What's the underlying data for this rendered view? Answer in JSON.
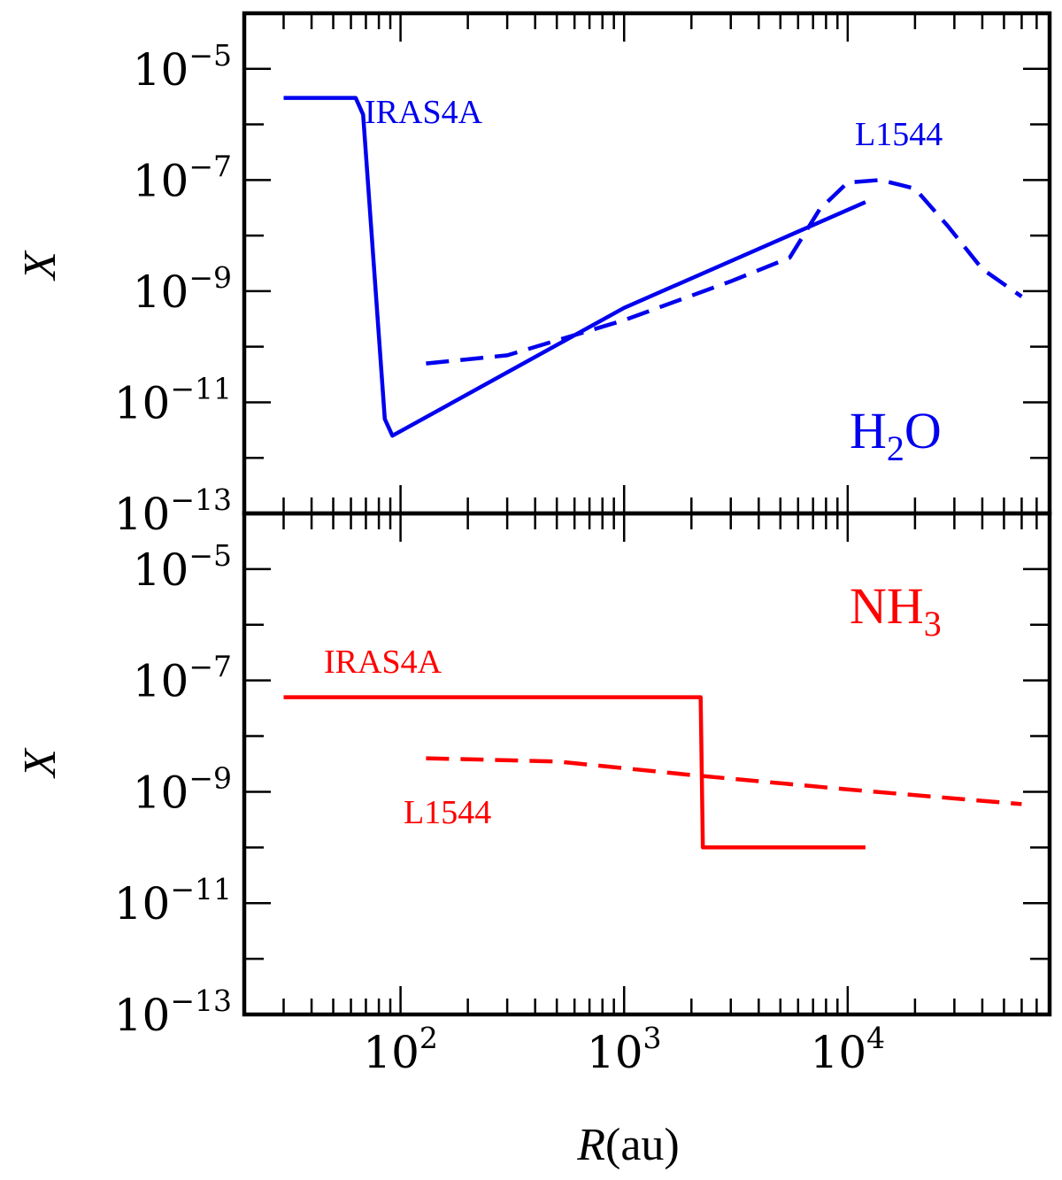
{
  "chart_data": [
    {
      "type": "line",
      "panel": "top",
      "species_label": {
        "main": "H",
        "sub": "2",
        "tail": "O"
      },
      "ylabel": "X",
      "xscale": "log",
      "yscale": "log",
      "xlim": [
        20,
        80000
      ],
      "ylim": [
        1e-13,
        0.0001
      ],
      "yticklabels": [
        {
          "base": "10",
          "exp": "−13",
          "value": 1e-13
        },
        {
          "base": "10",
          "exp": "−11",
          "value": 1e-11
        },
        {
          "base": "10",
          "exp": "−9",
          "value": 1e-09
        },
        {
          "base": "10",
          "exp": "−7",
          "value": 1e-07
        },
        {
          "base": "10",
          "exp": "−5",
          "value": 1e-05
        }
      ],
      "color": "#0000ee",
      "series": [
        {
          "name": "IRAS4A",
          "style": "solid",
          "x": [
            30,
            63,
            68,
            85,
            92,
            1000,
            12000
          ],
          "y": [
            3e-06,
            3e-06,
            1.5e-06,
            5e-12,
            2.5e-12,
            5e-10,
            4e-08
          ]
        },
        {
          "name": "L1544",
          "style": "dashed",
          "x": [
            130,
            300,
            1000,
            3000,
            5500,
            7500,
            10000,
            14000,
            20000,
            28000,
            40000,
            60000
          ],
          "y": [
            5e-11,
            7e-11,
            3e-10,
            1.5e-09,
            4e-09,
            3e-08,
            9e-08,
            1e-07,
            7e-08,
            1.5e-08,
            2.5e-09,
            8e-10
          ]
        }
      ],
      "annotations": [
        "IRAS4A",
        "L1544"
      ]
    },
    {
      "type": "line",
      "panel": "bottom",
      "species_label": {
        "main": "NH",
        "sub": "3",
        "tail": ""
      },
      "ylabel": "X",
      "xlabel_symbol": "R",
      "xlabel_unit": "(au)",
      "xscale": "log",
      "yscale": "log",
      "xlim": [
        20,
        80000
      ],
      "ylim": [
        1e-13,
        0.0001
      ],
      "xticklabels": [
        {
          "base": "10",
          "exp": "2",
          "value": 100
        },
        {
          "base": "10",
          "exp": "3",
          "value": 1000
        },
        {
          "base": "10",
          "exp": "4",
          "value": 10000
        }
      ],
      "yticklabels": [
        {
          "base": "10",
          "exp": "−13",
          "value": 1e-13
        },
        {
          "base": "10",
          "exp": "−11",
          "value": 1e-11
        },
        {
          "base": "10",
          "exp": "−9",
          "value": 1e-09
        },
        {
          "base": "10",
          "exp": "−7",
          "value": 1e-07
        },
        {
          "base": "10",
          "exp": "−5",
          "value": 1e-05
        }
      ],
      "color": "#ff0000",
      "series": [
        {
          "name": "IRAS4A",
          "style": "solid",
          "x": [
            30,
            2200,
            2250,
            12000
          ],
          "y": [
            5e-08,
            5e-08,
            1e-10,
            1e-10
          ]
        },
        {
          "name": "L1544",
          "style": "dashed",
          "x": [
            130,
            500,
            2000,
            10000,
            60000
          ],
          "y": [
            4e-09,
            3.5e-09,
            2e-09,
            1.1e-09,
            6e-10
          ]
        }
      ],
      "annotations": [
        "IRAS4A",
        "L1544"
      ]
    }
  ]
}
